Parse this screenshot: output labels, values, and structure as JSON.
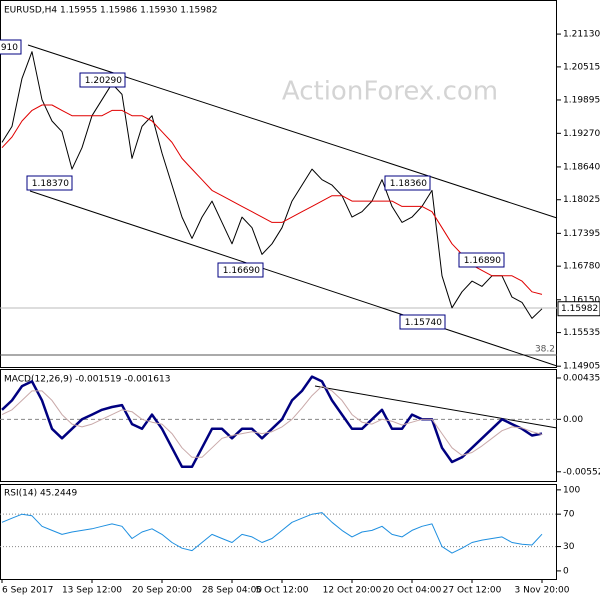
{
  "chart_data": [
    {
      "type": "line",
      "title": "EURUSD,H4  1.15955 1.15986 1.15930 1.15982",
      "watermark": "ActionForex.com",
      "xlim": [
        0,
        55.5
      ],
      "ylim": [
        1.1489,
        1.2175
      ],
      "yticks": [
        {
          "value": 1.2113,
          "label": "1.21130"
        },
        1.20515,
        1.19895,
        {
          "value": 1.1927,
          "label": "1.19270"
        },
        {
          "value": 1.1864,
          "label": "1.18640"
        },
        1.18025,
        1.17395,
        {
          "value": 1.1678,
          "label": "1.16780"
        },
        {
          "value": 1.1615,
          "label": "1.16150"
        },
        1.15535,
        1.14905
      ],
      "last": {
        "value": 1.15982,
        "label": "1.15982"
      },
      "fib_label": "38.2",
      "annotations": [
        "910",
        "1.20290",
        "1.18370",
        "1.16690",
        "1.18360",
        "1.16890",
        "1.15740"
      ],
      "series": [
        {
          "color": "#000000",
          "line_width": 1,
          "values": [
            1.191,
            1.194,
            1.203,
            1.208,
            1.199,
            1.195,
            1.193,
            1.186,
            1.19,
            1.196,
            1.199,
            1.202,
            1.2,
            1.188,
            1.194,
            1.196,
            1.189,
            1.183,
            1.177,
            1.173,
            1.177,
            1.18,
            1.176,
            1.172,
            1.177,
            1.175,
            1.17,
            1.172,
            1.175,
            1.18,
            1.183,
            1.186,
            1.184,
            1.183,
            1.181,
            1.177,
            1.178,
            1.18,
            1.184,
            1.179,
            1.176,
            1.177,
            1.179,
            1.182,
            1.166,
            1.16,
            1.163,
            1.165,
            1.164,
            1.166,
            1.166,
            1.162,
            1.161,
            1.158,
            1.1598
          ]
        },
        {
          "color": "#e00000",
          "line_width": 1,
          "values": [
            1.19,
            1.192,
            1.195,
            1.197,
            1.198,
            1.198,
            1.197,
            1.196,
            1.196,
            1.196,
            1.196,
            1.197,
            1.197,
            1.196,
            1.196,
            1.195,
            1.193,
            1.191,
            1.188,
            1.186,
            1.184,
            1.182,
            1.181,
            1.18,
            1.179,
            1.178,
            1.177,
            1.176,
            1.176,
            1.177,
            1.178,
            1.179,
            1.18,
            1.181,
            1.181,
            1.18,
            1.18,
            1.18,
            1.18,
            1.18,
            1.179,
            1.179,
            1.179,
            1.178,
            1.175,
            1.172,
            1.17,
            1.168,
            1.167,
            1.166,
            1.166,
            1.166,
            1.165,
            1.163,
            1.1625
          ]
        }
      ]
    },
    {
      "type": "line",
      "title": "MACD(12,26,9) -0.001519 -0.001613",
      "xlim": [
        0,
        55.5
      ],
      "ylim": [
        -0.0065,
        0.0052
      ],
      "yticks": [
        0.004358,
        {
          "value": 0,
          "label": "0.00"
        },
        {
          "value": -0.005528,
          "label": "-0.005528"
        }
      ],
      "levels": [
        0
      ],
      "series": [
        {
          "color": "#000080",
          "line_width": 2.5,
          "values": [
            0.001,
            0.002,
            0.0035,
            0.004,
            0.002,
            -0.001,
            -0.002,
            -0.001,
            0,
            0.0005,
            0.001,
            0.0013,
            0.0015,
            -0.0005,
            -0.001,
            0.0005,
            -0.001,
            -0.003,
            -0.005,
            -0.005,
            -0.003,
            -0.001,
            -0.001,
            -0.002,
            -0.001,
            -0.001,
            -0.002,
            -0.001,
            0,
            0.002,
            0.003,
            0.0045,
            0.004,
            0.002,
            0.0005,
            -0.001,
            -0.001,
            0,
            0.001,
            -0.001,
            -0.001,
            0.0005,
            0,
            0,
            -0.003,
            -0.0045,
            -0.004,
            -0.003,
            -0.002,
            -0.001,
            0,
            -0.0005,
            -0.001,
            -0.0017,
            -0.0015
          ]
        },
        {
          "color": "#c9a9a9",
          "line_width": 1,
          "values": [
            0.0005,
            0.001,
            0.002,
            0.003,
            0.003,
            0.002,
            0.0005,
            -0.0005,
            -0.0008,
            -0.0005,
            0,
            0.0005,
            0.001,
            0.0008,
            0,
            -0.0003,
            -0.0005,
            -0.0015,
            -0.003,
            -0.004,
            -0.004,
            -0.003,
            -0.002,
            -0.0017,
            -0.0015,
            -0.0013,
            -0.0015,
            -0.0013,
            -0.0008,
            0,
            0.0012,
            0.0025,
            0.0035,
            0.003,
            0.002,
            0.0005,
            -0.0003,
            -0.0005,
            0,
            -0.0002,
            -0.0006,
            -0.0003,
            0,
            0,
            -0.0015,
            -0.003,
            -0.0038,
            -0.0035,
            -0.0028,
            -0.002,
            -0.0012,
            -0.0008,
            -0.0009,
            -0.0013,
            -0.0016
          ]
        }
      ]
    },
    {
      "type": "line",
      "title": "RSI(14) 45.2449",
      "xlim": [
        0,
        55.5
      ],
      "ylim": [
        -10,
        106
      ],
      "yticks": [
        100,
        70,
        30,
        0
      ],
      "levels": [
        70,
        30
      ],
      "xticks": [
        {
          "value": 0,
          "label": "6 Sep 2017"
        },
        {
          "value": 9,
          "label": "13 Sep 12:00"
        },
        {
          "value": 16,
          "label": "20 Sep 20:00"
        },
        {
          "value": 23,
          "label": "28 Sep 04:00"
        },
        {
          "value": 28,
          "label": "5 Oct 12:00"
        },
        {
          "value": 35,
          "label": "12 Oct 20:00"
        },
        {
          "value": 41,
          "label": "20 Oct 04:00"
        },
        {
          "value": 47,
          "label": "27 Oct 12:00"
        },
        {
          "value": 54,
          "label": "3 Nov 20:00"
        }
      ],
      "series": [
        {
          "color": "#1e8fe0",
          "line_width": 1,
          "values": [
            60,
            65,
            70,
            68,
            55,
            50,
            45,
            48,
            50,
            52,
            55,
            58,
            55,
            40,
            48,
            52,
            45,
            35,
            28,
            25,
            35,
            45,
            40,
            35,
            45,
            42,
            35,
            40,
            50,
            60,
            65,
            70,
            72,
            60,
            50,
            42,
            48,
            50,
            55,
            45,
            42,
            50,
            55,
            58,
            30,
            22,
            28,
            35,
            38,
            40,
            42,
            35,
            33,
            32,
            45.2449
          ]
        }
      ]
    }
  ]
}
